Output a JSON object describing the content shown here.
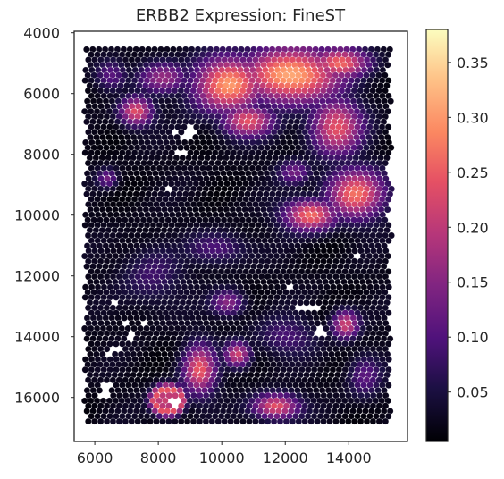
{
  "chart_data": {
    "type": "heatmap",
    "subtype": "spatial-hex-scatter",
    "title": "ERBB2 Expression: FineST",
    "xlabel": "",
    "ylabel": "",
    "xlim": [
      5350,
      15850
    ],
    "ylim": [
      17450,
      3950
    ],
    "y_inverted": true,
    "x_ticks": [
      6000,
      8000,
      10000,
      12000,
      14000
    ],
    "y_ticks": [
      4000,
      6000,
      8000,
      10000,
      12000,
      14000,
      16000
    ],
    "grid": false,
    "colormap": "magma",
    "colorbar": {
      "min": 0.005,
      "max": 0.38,
      "ticks": [
        0.05,
        0.1,
        0.15,
        0.2,
        0.25,
        0.3,
        0.35
      ],
      "tick_labels": [
        "0.05",
        "0.10",
        "0.15",
        "0.20",
        "0.25",
        "0.30",
        "0.35"
      ]
    },
    "spot_grid": {
      "x_start": 5700,
      "x_end": 15300,
      "y_start": 4550,
      "y_end": 16850,
      "dx": 195,
      "dy": 170
    },
    "hotspots": [
      {
        "x": 12200,
        "y": 5400,
        "sx": 1500,
        "sy": 900,
        "value": 0.33
      },
      {
        "x": 10200,
        "y": 5700,
        "sx": 1100,
        "sy": 900,
        "value": 0.3
      },
      {
        "x": 13700,
        "y": 5000,
        "sx": 900,
        "sy": 500,
        "value": 0.26
      },
      {
        "x": 10800,
        "y": 6900,
        "sx": 800,
        "sy": 500,
        "value": 0.24
      },
      {
        "x": 13600,
        "y": 7100,
        "sx": 800,
        "sy": 900,
        "value": 0.24
      },
      {
        "x": 14200,
        "y": 9300,
        "sx": 900,
        "sy": 800,
        "value": 0.26
      },
      {
        "x": 12800,
        "y": 10000,
        "sx": 800,
        "sy": 500,
        "value": 0.27
      },
      {
        "x": 7300,
        "y": 6600,
        "sx": 500,
        "sy": 450,
        "value": 0.24
      },
      {
        "x": 8200,
        "y": 5500,
        "sx": 800,
        "sy": 500,
        "value": 0.15
      },
      {
        "x": 6500,
        "y": 5400,
        "sx": 500,
        "sy": 500,
        "value": 0.11
      },
      {
        "x": 9300,
        "y": 15100,
        "sx": 500,
        "sy": 800,
        "value": 0.24
      },
      {
        "x": 10500,
        "y": 14600,
        "sx": 400,
        "sy": 400,
        "value": 0.22
      },
      {
        "x": 11700,
        "y": 16300,
        "sx": 700,
        "sy": 400,
        "value": 0.25
      },
      {
        "x": 13900,
        "y": 13600,
        "sx": 400,
        "sy": 450,
        "value": 0.22
      },
      {
        "x": 8300,
        "y": 16100,
        "sx": 450,
        "sy": 450,
        "value": 0.22
      },
      {
        "x": 10200,
        "y": 12900,
        "sx": 500,
        "sy": 400,
        "value": 0.15
      },
      {
        "x": 9900,
        "y": 11100,
        "sx": 900,
        "sy": 500,
        "value": 0.09
      },
      {
        "x": 7800,
        "y": 12000,
        "sx": 900,
        "sy": 1000,
        "value": 0.07
      },
      {
        "x": 6400,
        "y": 8800,
        "sx": 300,
        "sy": 300,
        "value": 0.12
      },
      {
        "x": 12300,
        "y": 8600,
        "sx": 500,
        "sy": 400,
        "value": 0.12
      },
      {
        "x": 12000,
        "y": 14000,
        "sx": 900,
        "sy": 600,
        "value": 0.08
      },
      {
        "x": 14500,
        "y": 15300,
        "sx": 500,
        "sy": 700,
        "value": 0.1
      }
    ],
    "background_level": 0.02,
    "missing_spots": [
      [
        8500,
        7300
      ],
      [
        8900,
        7400
      ],
      [
        9000,
        7200
      ],
      [
        8700,
        7900
      ],
      [
        8400,
        9100
      ],
      [
        14200,
        11400
      ],
      [
        12100,
        12400
      ],
      [
        12500,
        13000
      ],
      [
        12900,
        13100
      ],
      [
        13100,
        13800
      ],
      [
        6550,
        12900
      ],
      [
        7500,
        13500
      ],
      [
        6900,
        13500
      ],
      [
        7100,
        14100
      ],
      [
        7200,
        13900
      ],
      [
        6800,
        14400
      ],
      [
        6500,
        14500
      ],
      [
        6400,
        15700
      ],
      [
        6300,
        15900
      ],
      [
        8400,
        16100
      ],
      [
        8600,
        16200
      ]
    ]
  }
}
